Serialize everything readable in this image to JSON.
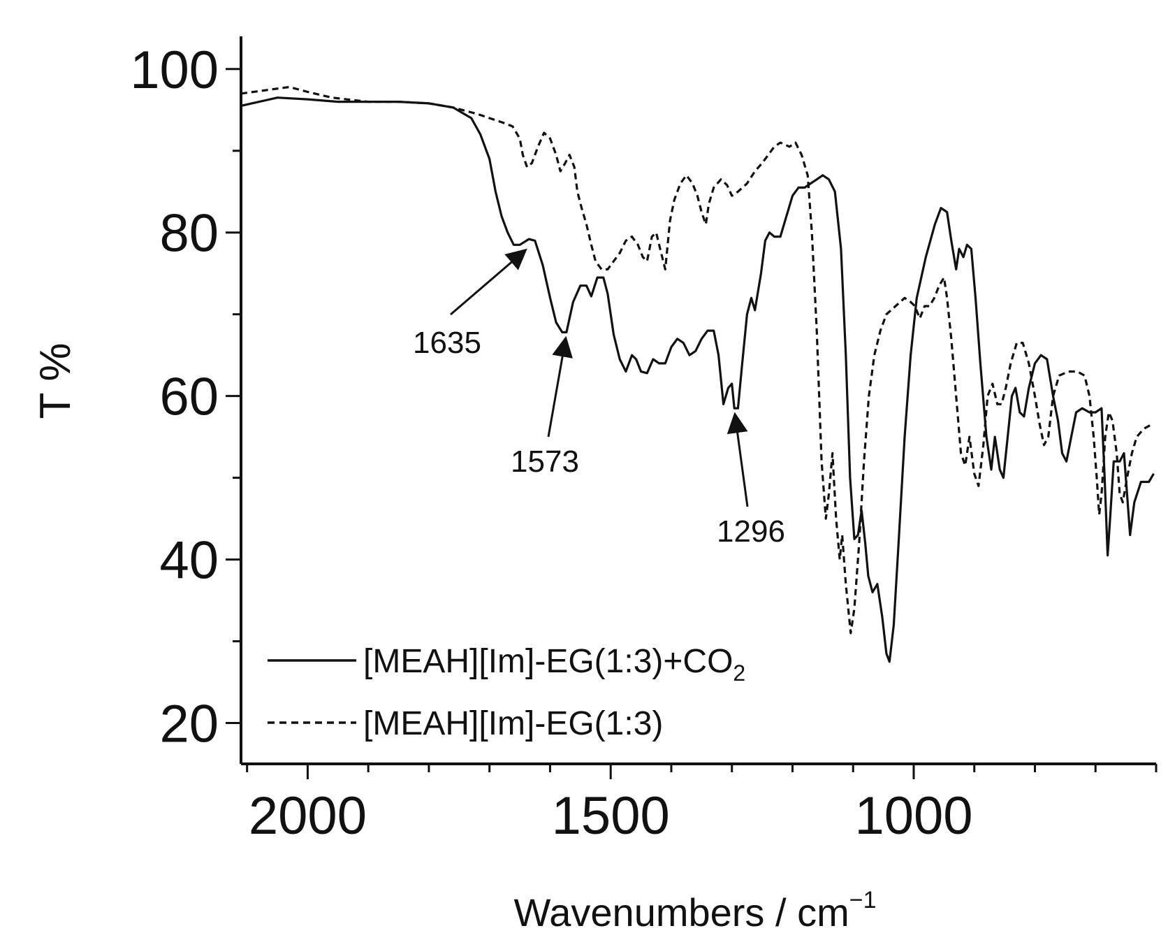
{
  "chart_data": {
    "type": "line",
    "xlabel": "Wavenumbers / cm",
    "xlabel_sup": "−1",
    "ylabel": "T %",
    "xlim": [
      2110,
      600
    ],
    "ylim": [
      15,
      104
    ],
    "x_ticks": [
      2000,
      1500,
      1000
    ],
    "x_tick_labels": [
      "2000",
      "1500",
      "1000"
    ],
    "y_ticks": [
      20,
      40,
      60,
      80,
      100
    ],
    "y_tick_labels": [
      "20",
      "40",
      "60",
      "80",
      "100"
    ],
    "grid": false,
    "legend_position": "bottom-left",
    "series": [
      {
        "name": "[MEAH][Im]-EG(1:3)+CO",
        "name_sub": "2",
        "style": "solid",
        "color": "#111111",
        "points": [
          [
            2110,
            95.5
          ],
          [
            2080,
            96
          ],
          [
            2050,
            96.5
          ],
          [
            2000,
            96.3
          ],
          [
            1950,
            96
          ],
          [
            1900,
            96
          ],
          [
            1850,
            96
          ],
          [
            1800,
            95.8
          ],
          [
            1760,
            95.3
          ],
          [
            1730,
            94
          ],
          [
            1715,
            92
          ],
          [
            1700,
            89
          ],
          [
            1690,
            85
          ],
          [
            1680,
            82
          ],
          [
            1670,
            80
          ],
          [
            1660,
            78.5
          ],
          [
            1650,
            78.5
          ],
          [
            1635,
            79.2
          ],
          [
            1625,
            79
          ],
          [
            1612,
            76
          ],
          [
            1600,
            72
          ],
          [
            1590,
            69
          ],
          [
            1580,
            67.8
          ],
          [
            1573,
            67.8
          ],
          [
            1562,
            71.5
          ],
          [
            1550,
            73.5
          ],
          [
            1540,
            73.5
          ],
          [
            1532,
            72.2
          ],
          [
            1522,
            74.5
          ],
          [
            1512,
            74.5
          ],
          [
            1505,
            72.5
          ],
          [
            1495,
            67.5
          ],
          [
            1485,
            64.5
          ],
          [
            1475,
            63
          ],
          [
            1465,
            65
          ],
          [
            1458,
            64.5
          ],
          [
            1450,
            63
          ],
          [
            1440,
            62.8
          ],
          [
            1430,
            64.5
          ],
          [
            1420,
            64
          ],
          [
            1410,
            64
          ],
          [
            1400,
            66
          ],
          [
            1390,
            67
          ],
          [
            1380,
            66.5
          ],
          [
            1370,
            65
          ],
          [
            1360,
            65.5
          ],
          [
            1350,
            67
          ],
          [
            1340,
            68
          ],
          [
            1330,
            68
          ],
          [
            1322,
            65
          ],
          [
            1314,
            59
          ],
          [
            1306,
            61
          ],
          [
            1300,
            61.5
          ],
          [
            1296,
            58.5
          ],
          [
            1290,
            58.5
          ],
          [
            1283,
            64
          ],
          [
            1275,
            70
          ],
          [
            1268,
            72
          ],
          [
            1262,
            70.5
          ],
          [
            1252,
            75
          ],
          [
            1245,
            79
          ],
          [
            1238,
            80
          ],
          [
            1230,
            79.5
          ],
          [
            1220,
            79.5
          ],
          [
            1210,
            82
          ],
          [
            1200,
            84.5
          ],
          [
            1190,
            85.5
          ],
          [
            1180,
            85.5
          ],
          [
            1170,
            86
          ],
          [
            1160,
            86.5
          ],
          [
            1150,
            87
          ],
          [
            1140,
            86.5
          ],
          [
            1130,
            85
          ],
          [
            1120,
            78
          ],
          [
            1112,
            65
          ],
          [
            1105,
            50
          ],
          [
            1098,
            42.5
          ],
          [
            1092,
            43
          ],
          [
            1086,
            46
          ],
          [
            1080,
            42
          ],
          [
            1075,
            38
          ],
          [
            1068,
            36
          ],
          [
            1060,
            37
          ],
          [
            1052,
            33
          ],
          [
            1045,
            28.5
          ],
          [
            1040,
            27.5
          ],
          [
            1033,
            32
          ],
          [
            1025,
            42
          ],
          [
            1015,
            55
          ],
          [
            1005,
            65
          ],
          [
            995,
            72
          ],
          [
            980,
            77
          ],
          [
            965,
            81
          ],
          [
            955,
            83
          ],
          [
            945,
            82.5
          ],
          [
            938,
            79
          ],
          [
            930,
            75.5
          ],
          [
            925,
            78
          ],
          [
            918,
            77
          ],
          [
            912,
            78.5
          ],
          [
            905,
            78
          ],
          [
            898,
            72
          ],
          [
            890,
            64
          ],
          [
            880,
            55
          ],
          [
            872,
            51
          ],
          [
            866,
            55
          ],
          [
            858,
            51
          ],
          [
            852,
            50
          ],
          [
            845,
            55
          ],
          [
            838,
            60
          ],
          [
            832,
            61
          ],
          [
            825,
            58
          ],
          [
            818,
            57.5
          ],
          [
            810,
            61
          ],
          [
            800,
            64
          ],
          [
            790,
            65
          ],
          [
            780,
            64.5
          ],
          [
            770,
            60
          ],
          [
            762,
            57
          ],
          [
            755,
            53
          ],
          [
            748,
            52
          ],
          [
            740,
            55
          ],
          [
            732,
            58
          ],
          [
            722,
            58.5
          ],
          [
            710,
            58
          ],
          [
            700,
            58
          ],
          [
            690,
            58.5
          ],
          [
            685,
            50
          ],
          [
            680,
            40.5
          ],
          [
            676,
            45
          ],
          [
            670,
            52
          ],
          [
            660,
            52
          ],
          [
            653,
            53
          ],
          [
            648,
            48
          ],
          [
            643,
            43
          ],
          [
            636,
            47
          ],
          [
            625,
            49.5
          ],
          [
            612,
            49.5
          ],
          [
            604,
            50.5
          ]
        ]
      },
      {
        "name": "[MEAH][Im]-EG(1:3)",
        "style": "dashed",
        "color": "#111111",
        "points": [
          [
            2110,
            97
          ],
          [
            2060,
            97.5
          ],
          [
            2030,
            97.8
          ],
          [
            2000,
            97.2
          ],
          [
            1960,
            96.5
          ],
          [
            1900,
            96
          ],
          [
            1850,
            96
          ],
          [
            1800,
            95.8
          ],
          [
            1760,
            95.3
          ],
          [
            1720,
            94.5
          ],
          [
            1700,
            94
          ],
          [
            1680,
            93.5
          ],
          [
            1662,
            93
          ],
          [
            1650,
            91.5
          ],
          [
            1645,
            89.5
          ],
          [
            1638,
            88
          ],
          [
            1630,
            88.5
          ],
          [
            1620,
            90.5
          ],
          [
            1610,
            92.2
          ],
          [
            1600,
            91.5
          ],
          [
            1590,
            89.5
          ],
          [
            1583,
            87.5
          ],
          [
            1575,
            88.5
          ],
          [
            1568,
            89.5
          ],
          [
            1560,
            88
          ],
          [
            1555,
            85
          ],
          [
            1548,
            83
          ],
          [
            1540,
            81
          ],
          [
            1532,
            78.5
          ],
          [
            1525,
            76.5
          ],
          [
            1515,
            75.5
          ],
          [
            1505,
            75.5
          ],
          [
            1495,
            76.5
          ],
          [
            1485,
            77.5
          ],
          [
            1475,
            79
          ],
          [
            1465,
            79.5
          ],
          [
            1455,
            78.5
          ],
          [
            1447,
            77
          ],
          [
            1440,
            76.5
          ],
          [
            1432,
            79.5
          ],
          [
            1425,
            80
          ],
          [
            1415,
            77
          ],
          [
            1410,
            75.5
          ],
          [
            1402,
            81.5
          ],
          [
            1395,
            84
          ],
          [
            1385,
            86
          ],
          [
            1375,
            87
          ],
          [
            1365,
            86
          ],
          [
            1357,
            84.5
          ],
          [
            1350,
            82.5
          ],
          [
            1343,
            81
          ],
          [
            1338,
            83.5
          ],
          [
            1330,
            85.5
          ],
          [
            1318,
            86.5
          ],
          [
            1308,
            85.8
          ],
          [
            1300,
            84.5
          ],
          [
            1290,
            85
          ],
          [
            1275,
            86
          ],
          [
            1262,
            87.5
          ],
          [
            1250,
            88.5
          ],
          [
            1240,
            89.5
          ],
          [
            1230,
            90.5
          ],
          [
            1220,
            91
          ],
          [
            1205,
            90.5
          ],
          [
            1195,
            91
          ],
          [
            1185,
            89.5
          ],
          [
            1175,
            87
          ],
          [
            1168,
            80
          ],
          [
            1160,
            68
          ],
          [
            1152,
            52
          ],
          [
            1145,
            45
          ],
          [
            1140,
            48
          ],
          [
            1134,
            53
          ],
          [
            1128,
            45
          ],
          [
            1122,
            40
          ],
          [
            1118,
            43
          ],
          [
            1112,
            37
          ],
          [
            1104,
            31
          ],
          [
            1098,
            34
          ],
          [
            1090,
            42
          ],
          [
            1082,
            52
          ],
          [
            1074,
            60
          ],
          [
            1065,
            65
          ],
          [
            1055,
            68
          ],
          [
            1045,
            70
          ],
          [
            1030,
            71
          ],
          [
            1015,
            72
          ],
          [
            1005,
            71.5
          ],
          [
            998,
            71
          ],
          [
            990,
            69.5
          ],
          [
            982,
            71
          ],
          [
            974,
            71
          ],
          [
            966,
            72
          ],
          [
            958,
            73.5
          ],
          [
            950,
            74.5
          ],
          [
            945,
            72
          ],
          [
            938,
            67
          ],
          [
            930,
            60
          ],
          [
            922,
            53
          ],
          [
            915,
            51.5
          ],
          [
            908,
            55
          ],
          [
            900,
            50.5
          ],
          [
            893,
            49
          ],
          [
            885,
            54
          ],
          [
            878,
            60
          ],
          [
            870,
            61.5
          ],
          [
            862,
            59
          ],
          [
            855,
            59
          ],
          [
            848,
            61
          ],
          [
            840,
            64
          ],
          [
            830,
            66.5
          ],
          [
            820,
            66.5
          ],
          [
            810,
            64
          ],
          [
            800,
            60
          ],
          [
            792,
            56.5
          ],
          [
            785,
            54
          ],
          [
            778,
            55
          ],
          [
            770,
            60
          ],
          [
            760,
            62.5
          ],
          [
            745,
            63
          ],
          [
            730,
            63
          ],
          [
            718,
            62.5
          ],
          [
            710,
            60
          ],
          [
            703,
            55
          ],
          [
            698,
            50
          ],
          [
            694,
            45.5
          ],
          [
            690,
            48
          ],
          [
            684,
            55
          ],
          [
            678,
            58
          ],
          [
            672,
            57
          ],
          [
            665,
            53
          ],
          [
            660,
            48
          ],
          [
            655,
            47
          ],
          [
            648,
            50
          ],
          [
            640,
            53
          ],
          [
            632,
            55
          ],
          [
            620,
            56
          ],
          [
            608,
            56.5
          ]
        ]
      }
    ],
    "annotations": [
      {
        "label": "1635",
        "x": 1635,
        "y": 78.2
      },
      {
        "label": "1573",
        "x": 1573,
        "y": 67.6
      },
      {
        "label": "1296",
        "x": 1296,
        "y": 58.3
      }
    ]
  }
}
